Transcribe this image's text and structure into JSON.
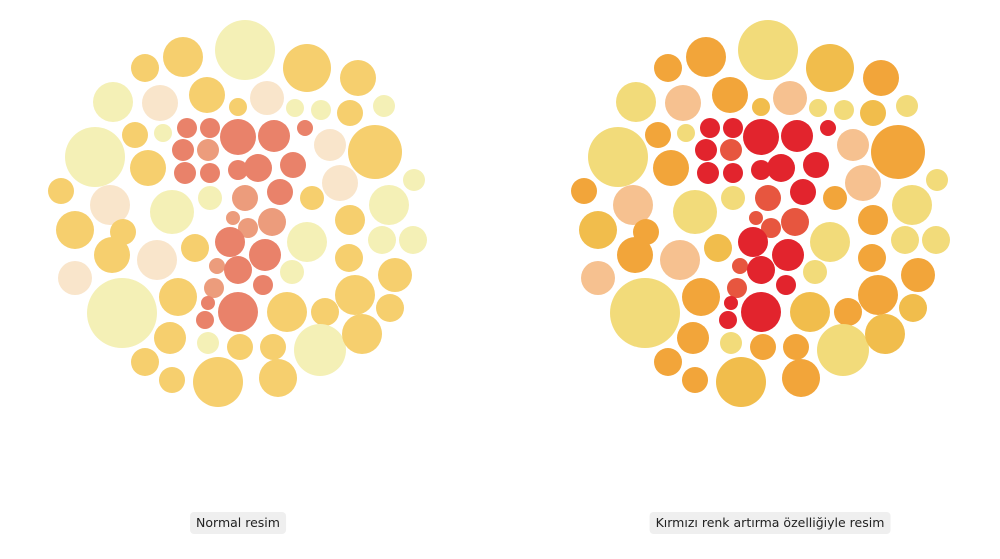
{
  "captions": {
    "left": "Normal resim",
    "right": "Kırmızı renk artırma özelliğiyle resim"
  }
}
